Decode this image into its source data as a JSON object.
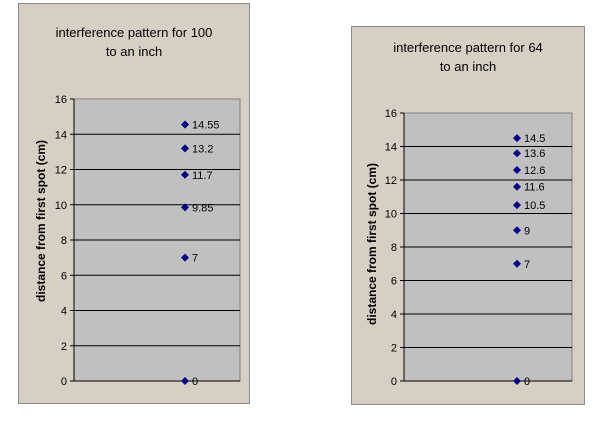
{
  "chart_data": [
    {
      "type": "scatter",
      "title_lines": [
        "interference pattern for 100",
        "to an inch"
      ],
      "ylabel": "distance from first spot (cm)",
      "xlabel": "",
      "ylim": [
        0,
        16
      ],
      "yticks": [
        "0",
        "2",
        "4",
        "6",
        "8",
        "10",
        "12",
        "14",
        "16"
      ],
      "grid": true,
      "marker_color": "#000080",
      "plot_background": "#c0c0c0",
      "y": [
        0,
        7,
        9.85,
        11.7,
        13.2,
        14.55
      ],
      "data_labels": [
        "0",
        "7",
        "9.85",
        "11.7",
        "13.2",
        "14.55"
      ]
    },
    {
      "type": "scatter",
      "title_lines": [
        "interference pattern for 64",
        "to an inch"
      ],
      "ylabel": "distance from first spot (cm)",
      "xlabel": "",
      "ylim": [
        0,
        16
      ],
      "yticks": [
        "0",
        "2",
        "4",
        "6",
        "8",
        "10",
        "12",
        "14",
        "16"
      ],
      "grid": true,
      "marker_color": "#000080",
      "plot_background": "#c0c0c0",
      "y": [
        0,
        7,
        9,
        10.5,
        11.6,
        12.6,
        13.6,
        14.5
      ],
      "data_labels": [
        "0",
        "7",
        "9",
        "10.5",
        "11.6",
        "12.6",
        "13.6",
        "14.5"
      ]
    }
  ]
}
